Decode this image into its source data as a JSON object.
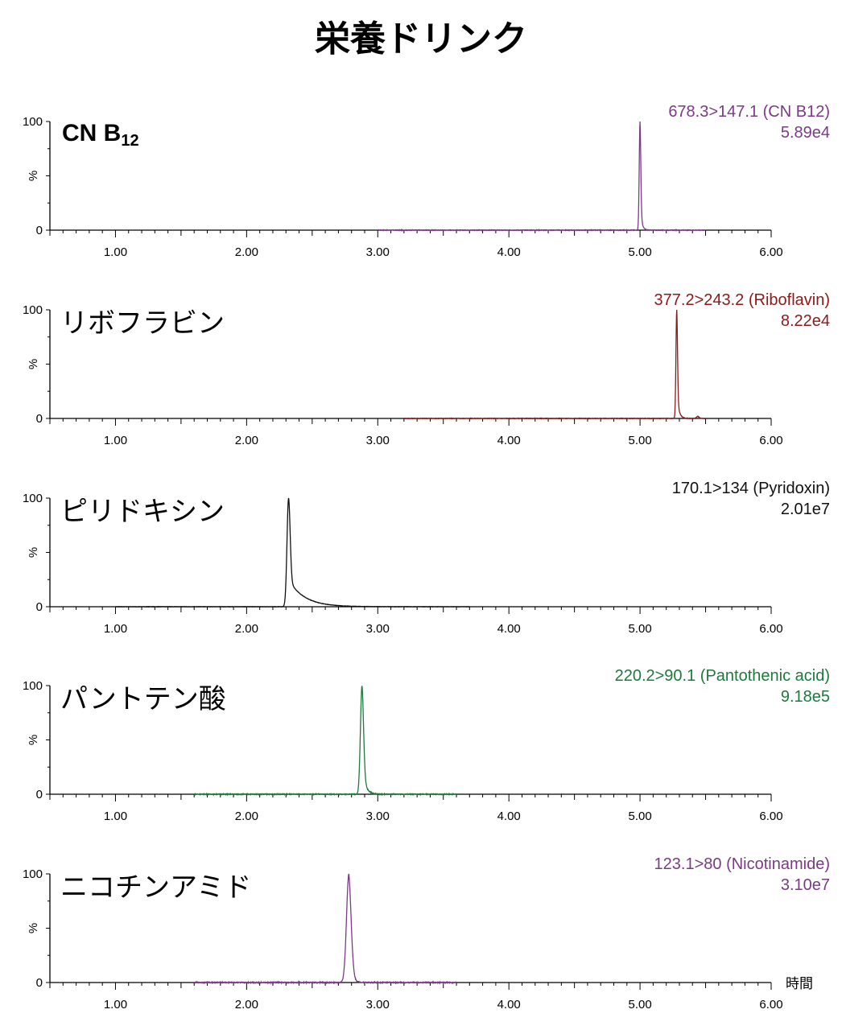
{
  "title": "栄養ドリンク",
  "x_unit_label": "時間",
  "chart_data": [
    {
      "type": "line",
      "compound": "CN B",
      "compound_sub": "12",
      "channel": "678.3>147.1 (CN B12)",
      "intensity": "5.89e4",
      "color": "#7b3a86",
      "xlim": [
        0.5,
        6.0
      ],
      "ylim": [
        0,
        100
      ],
      "ylabel": "%",
      "yticks": [
        "100",
        "%",
        "0"
      ],
      "xticks": [
        "1.00",
        "2.00",
        "3.00",
        "4.00",
        "5.00",
        "6.00"
      ],
      "trace_range": [
        3.0,
        5.5
      ],
      "peaks": [
        {
          "rt": 5.0,
          "height": 100,
          "sigma": 0.006,
          "tail": 0.012
        }
      ],
      "noise": 0.6
    },
    {
      "type": "line",
      "compound": "リボフラビン",
      "channel": "377.2>243.2 (Riboflavin)",
      "intensity": "8.22e4",
      "color": "#8b1a1a",
      "xlim": [
        0.5,
        6.0
      ],
      "ylim": [
        0,
        100
      ],
      "ylabel": "%",
      "yticks": [
        "100",
        "%",
        "0"
      ],
      "xticks": [
        "1.00",
        "2.00",
        "3.00",
        "4.00",
        "5.00",
        "6.00"
      ],
      "trace_range": [
        3.2,
        5.5
      ],
      "peaks": [
        {
          "rt": 5.28,
          "height": 100,
          "sigma": 0.006,
          "tail": 0.015
        },
        {
          "rt": 5.44,
          "height": 2,
          "sigma": 0.01,
          "tail": 0.01
        }
      ],
      "noise": 0.5
    },
    {
      "type": "line",
      "compound": "ピリドキシン",
      "channel": "170.1>134 (Pyridoxin)",
      "intensity": "2.01e7",
      "color": "#111111",
      "xlim": [
        0.5,
        6.0
      ],
      "ylim": [
        0,
        100
      ],
      "ylabel": "%",
      "yticks": [
        "100",
        "%",
        "0"
      ],
      "xticks": [
        "1.00",
        "2.00",
        "3.00",
        "4.00",
        "5.00",
        "6.00"
      ],
      "trace_range": [
        1.0,
        3.7
      ],
      "peaks": [
        {
          "rt": 2.32,
          "height": 100,
          "sigma": 0.012,
          "tail": 0.12
        }
      ],
      "noise": 0.3
    },
    {
      "type": "line",
      "compound": "パントテン酸",
      "channel": "220.2>90.1 (Pantothenic acid)",
      "intensity": "9.18e5",
      "color": "#1e7a3c",
      "xlim": [
        0.5,
        6.0
      ],
      "ylim": [
        0,
        100
      ],
      "ylabel": "%",
      "yticks": [
        "100",
        "%",
        "0"
      ],
      "xticks": [
        "1.00",
        "2.00",
        "3.00",
        "4.00",
        "5.00",
        "6.00"
      ],
      "trace_range": [
        1.6,
        3.6
      ],
      "peaks": [
        {
          "rt": 2.88,
          "height": 100,
          "sigma": 0.012,
          "tail": 0.025
        }
      ],
      "noise": 0.8
    },
    {
      "type": "line",
      "compound": "ニコチンアミド",
      "channel": "123.1>80 (Nicotinamide)",
      "intensity": "3.10e7",
      "color": "#7b3a86",
      "xlim": [
        0.5,
        6.0
      ],
      "ylim": [
        0,
        100
      ],
      "ylabel": "%",
      "yticks": [
        "100",
        "%",
        "0"
      ],
      "xticks": [
        "1.00",
        "2.00",
        "3.00",
        "4.00",
        "5.00",
        "6.00"
      ],
      "trace_range": [
        1.6,
        3.6
      ],
      "peaks": [
        {
          "rt": 2.78,
          "height": 100,
          "sigma": 0.018,
          "tail": 0.02
        }
      ],
      "noise": 1.0
    }
  ]
}
